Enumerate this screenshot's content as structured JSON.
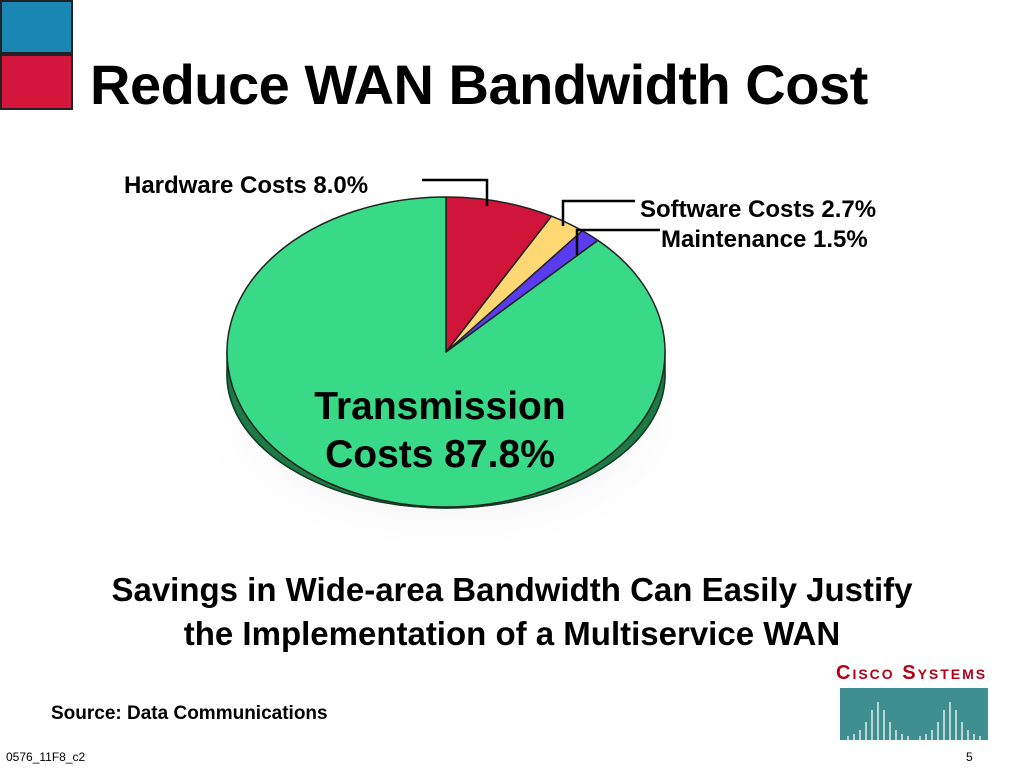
{
  "slide": {
    "title": "Reduce WAN Bandwidth Cost",
    "subtitle_line1": "Savings in Wide-area Bandwidth Can Easily Justify",
    "subtitle_line2": "the Implementation of a Multiservice WAN",
    "source": "Source: Data Communications",
    "footer_code": "0576_11F8_c2",
    "page_number": "5",
    "logo_text": "Cisco Systems",
    "accent_colors": {
      "blue": "#1a86b4",
      "red": "#d4163c"
    }
  },
  "chart_data": {
    "type": "pie",
    "title": "",
    "slices": [
      {
        "name": "Hardware Costs",
        "label": "Hardware Costs 8.0%",
        "value": 8.0,
        "color": "#d0143a"
      },
      {
        "name": "Software Costs",
        "label": "Software Costs 2.7%",
        "value": 2.7,
        "color": "#ffd873"
      },
      {
        "name": "Maintenance",
        "label": "Maintenance 1.5%",
        "value": 1.5,
        "color": "#5a3cf0"
      },
      {
        "name": "Transmission Costs",
        "label_line1": "Transmission",
        "label_line2": "Costs 87.8%",
        "value": 87.8,
        "color": "#38d987"
      }
    ],
    "legend": "none"
  }
}
